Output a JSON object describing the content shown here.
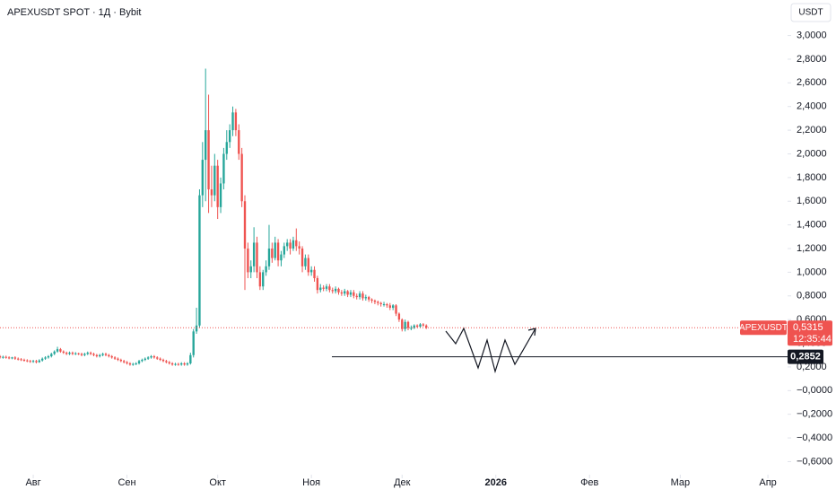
{
  "chart_data": {
    "type": "candlestick",
    "title": "APEXUSDT SPOT · 1Д · Bybit",
    "currency": "USDT",
    "symbol_label": "APEXUSDT",
    "countdown": "12:35:44",
    "up_color": "#26a69a",
    "down_color": "#ef5350",
    "last_price": {
      "value": 0.5315,
      "label": "0,5315"
    },
    "hline": {
      "value": 0.2852,
      "label": "0,2852"
    },
    "xlim": [
      0,
      260.5
    ],
    "xticks": [
      {
        "value": 11,
        "label": "Авг"
      },
      {
        "value": 42,
        "label": "Сен"
      },
      {
        "value": 72,
        "label": "Окт"
      },
      {
        "value": 103,
        "label": "Ноя"
      },
      {
        "value": 133,
        "label": "Дек"
      },
      {
        "value": 164,
        "label": "2026"
      },
      {
        "value": 195,
        "label": "Фев"
      },
      {
        "value": 225,
        "label": "Мар"
      },
      {
        "value": 254,
        "label": "Апр"
      }
    ],
    "ylim": [
      -0.68,
      3.3
    ],
    "yticks": [
      {
        "value": 3,
        "label": "3,0000"
      },
      {
        "value": 2.8,
        "label": "2,8000"
      },
      {
        "value": 2.6,
        "label": "2,6000"
      },
      {
        "value": 2.4,
        "label": "2,4000"
      },
      {
        "value": 2.2,
        "label": "2,2000"
      },
      {
        "value": 2,
        "label": "2,0000"
      },
      {
        "value": 1.8,
        "label": "1,8000"
      },
      {
        "value": 1.6,
        "label": "1,6000"
      },
      {
        "value": 1.4,
        "label": "1,4000"
      },
      {
        "value": 1.2,
        "label": "1,2000"
      },
      {
        "value": 1,
        "label": "1,0000"
      },
      {
        "value": 0.8,
        "label": "0,8000"
      },
      {
        "value": 0.6,
        "label": "0,6000"
      },
      {
        "value": 0.4,
        "label": "0,4000"
      },
      {
        "value": 0.2,
        "label": "0,2000"
      },
      {
        "value": 0,
        "label": "−0,0000"
      },
      {
        "value": -0.2,
        "label": "−0,2000"
      },
      {
        "value": -0.4,
        "label": "−0,4000"
      },
      {
        "value": -0.6,
        "label": "−0,6000"
      }
    ],
    "x": [
      0,
      1,
      2,
      3,
      4,
      5,
      6,
      7,
      8,
      9,
      10,
      11,
      12,
      13,
      14,
      15,
      16,
      17,
      18,
      19,
      20,
      21,
      22,
      23,
      24,
      25,
      26,
      27,
      28,
      29,
      30,
      31,
      32,
      33,
      34,
      35,
      36,
      37,
      38,
      39,
      40,
      41,
      42,
      43,
      44,
      45,
      46,
      47,
      48,
      49,
      50,
      51,
      52,
      53,
      54,
      55,
      56,
      57,
      58,
      59,
      60,
      61,
      62,
      63,
      64,
      65,
      66,
      67,
      68,
      69,
      70,
      71,
      72,
      73,
      74,
      75,
      76,
      77,
      78,
      79,
      80,
      81,
      82,
      83,
      84,
      85,
      86,
      87,
      88,
      89,
      90,
      91,
      92,
      93,
      94,
      95,
      96,
      97,
      98,
      99,
      100,
      101,
      102,
      103,
      104,
      105,
      106,
      107,
      108,
      109,
      110,
      111,
      112,
      113,
      114,
      115,
      116,
      117,
      118,
      119,
      120,
      121,
      122,
      123,
      124,
      125,
      126,
      127,
      128,
      129,
      130,
      131,
      132,
      133,
      134,
      135,
      136,
      137,
      138,
      139,
      140,
      141
    ],
    "open": [
      0.29,
      0.28,
      0.285,
      0.28,
      0.275,
      0.28,
      0.27,
      0.265,
      0.26,
      0.255,
      0.25,
      0.245,
      0.25,
      0.24,
      0.255,
      0.27,
      0.28,
      0.29,
      0.31,
      0.33,
      0.35,
      0.33,
      0.32,
      0.31,
      0.32,
      0.31,
      0.315,
      0.31,
      0.3,
      0.31,
      0.32,
      0.31,
      0.3,
      0.29,
      0.3,
      0.31,
      0.3,
      0.29,
      0.28,
      0.27,
      0.26,
      0.25,
      0.24,
      0.23,
      0.22,
      0.225,
      0.23,
      0.25,
      0.26,
      0.27,
      0.28,
      0.29,
      0.28,
      0.27,
      0.26,
      0.25,
      0.24,
      0.23,
      0.22,
      0.225,
      0.22,
      0.23,
      0.22,
      0.23,
      0.3,
      0.5,
      0.55,
      1.65,
      1.95,
      2.2,
      1.7,
      1.65,
      1.9,
      1.55,
      1.75,
      2.0,
      2.1,
      2.2,
      2.35,
      2.2,
      2.0,
      1.6,
      1.2,
      1.0,
      1.05,
      1.25,
      1.0,
      0.88,
      1.0,
      1.05,
      1.2,
      1.12,
      1.25,
      1.1,
      1.15,
      1.22,
      1.25,
      1.2,
      1.27,
      1.22,
      1.2,
      1.05,
      1.12,
      1.0,
      1.02,
      0.95,
      0.85,
      0.87,
      0.86,
      0.88,
      0.85,
      0.84,
      0.86,
      0.83,
      0.82,
      0.84,
      0.81,
      0.83,
      0.8,
      0.79,
      0.82,
      0.78,
      0.79,
      0.77,
      0.76,
      0.75,
      0.74,
      0.73,
      0.73,
      0.72,
      0.7,
      0.72,
      0.65,
      0.6,
      0.52,
      0.58,
      0.53,
      0.53,
      0.55,
      0.54,
      0.56,
      0.55
    ],
    "high": [
      0.3,
      0.295,
      0.295,
      0.29,
      0.285,
      0.29,
      0.28,
      0.275,
      0.27,
      0.265,
      0.26,
      0.26,
      0.26,
      0.265,
      0.28,
      0.29,
      0.3,
      0.32,
      0.34,
      0.37,
      0.36,
      0.34,
      0.33,
      0.33,
      0.33,
      0.325,
      0.32,
      0.32,
      0.32,
      0.33,
      0.33,
      0.32,
      0.31,
      0.31,
      0.32,
      0.32,
      0.31,
      0.3,
      0.29,
      0.28,
      0.27,
      0.26,
      0.25,
      0.24,
      0.235,
      0.24,
      0.26,
      0.27,
      0.28,
      0.29,
      0.3,
      0.3,
      0.29,
      0.28,
      0.27,
      0.26,
      0.25,
      0.24,
      0.235,
      0.235,
      0.24,
      0.24,
      0.24,
      0.32,
      0.52,
      0.7,
      1.7,
      2.1,
      2.72,
      2.5,
      1.9,
      2.0,
      1.95,
      1.8,
      2.05,
      2.2,
      2.25,
      2.4,
      2.38,
      2.25,
      2.05,
      1.65,
      1.25,
      1.1,
      1.38,
      1.3,
      1.05,
      1.02,
      1.1,
      1.4,
      1.25,
      1.3,
      1.28,
      1.18,
      1.25,
      1.28,
      1.28,
      1.3,
      1.37,
      1.26,
      1.22,
      1.15,
      1.15,
      1.05,
      1.05,
      0.97,
      0.9,
      0.89,
      0.9,
      0.9,
      0.87,
      0.88,
      0.87,
      0.85,
      0.86,
      0.85,
      0.85,
      0.85,
      0.82,
      0.84,
      0.84,
      0.81,
      0.8,
      0.78,
      0.77,
      0.76,
      0.75,
      0.75,
      0.74,
      0.74,
      0.73,
      0.73,
      0.66,
      0.61,
      0.6,
      0.59,
      0.55,
      0.56,
      0.56,
      0.57,
      0.57,
      0.56
    ],
    "low": [
      0.27,
      0.27,
      0.27,
      0.265,
      0.265,
      0.26,
      0.255,
      0.25,
      0.245,
      0.24,
      0.235,
      0.235,
      0.23,
      0.235,
      0.245,
      0.26,
      0.27,
      0.28,
      0.3,
      0.32,
      0.32,
      0.31,
      0.3,
      0.3,
      0.3,
      0.3,
      0.3,
      0.29,
      0.29,
      0.3,
      0.3,
      0.29,
      0.28,
      0.28,
      0.29,
      0.29,
      0.28,
      0.27,
      0.26,
      0.25,
      0.24,
      0.23,
      0.22,
      0.21,
      0.21,
      0.215,
      0.22,
      0.24,
      0.25,
      0.26,
      0.27,
      0.27,
      0.26,
      0.25,
      0.24,
      0.23,
      0.22,
      0.21,
      0.21,
      0.21,
      0.21,
      0.21,
      0.21,
      0.22,
      0.28,
      0.48,
      0.53,
      1.55,
      1.6,
      1.5,
      1.55,
      1.6,
      1.45,
      1.5,
      1.7,
      1.95,
      2.05,
      2.15,
      2.15,
      1.95,
      1.55,
      0.85,
      0.95,
      0.95,
      1.0,
      0.95,
      0.85,
      0.85,
      0.97,
      1.02,
      1.08,
      1.1,
      1.05,
      1.05,
      1.12,
      1.18,
      1.15,
      1.18,
      1.18,
      1.15,
      1.0,
      1.02,
      0.97,
      0.97,
      0.92,
      0.82,
      0.83,
      0.84,
      0.84,
      0.83,
      0.82,
      0.82,
      0.81,
      0.8,
      0.8,
      0.79,
      0.79,
      0.78,
      0.77,
      0.77,
      0.76,
      0.76,
      0.75,
      0.74,
      0.73,
      0.72,
      0.71,
      0.71,
      0.7,
      0.68,
      0.68,
      0.63,
      0.58,
      0.5,
      0.5,
      0.51,
      0.51,
      0.52,
      0.53,
      0.53,
      0.54,
      0.52
    ],
    "close": [
      0.28,
      0.285,
      0.28,
      0.275,
      0.28,
      0.27,
      0.265,
      0.26,
      0.255,
      0.25,
      0.245,
      0.25,
      0.24,
      0.255,
      0.27,
      0.28,
      0.29,
      0.31,
      0.33,
      0.35,
      0.33,
      0.32,
      0.31,
      0.32,
      0.31,
      0.315,
      0.31,
      0.3,
      0.31,
      0.32,
      0.31,
      0.3,
      0.29,
      0.3,
      0.31,
      0.3,
      0.29,
      0.28,
      0.27,
      0.26,
      0.25,
      0.24,
      0.23,
      0.22,
      0.225,
      0.23,
      0.25,
      0.26,
      0.27,
      0.28,
      0.29,
      0.28,
      0.27,
      0.26,
      0.25,
      0.24,
      0.23,
      0.22,
      0.225,
      0.22,
      0.23,
      0.22,
      0.23,
      0.3,
      0.5,
      0.55,
      1.65,
      1.95,
      2.2,
      1.7,
      1.65,
      1.9,
      1.55,
      1.75,
      2.0,
      2.1,
      2.2,
      2.35,
      2.2,
      2.0,
      1.6,
      1.2,
      1.0,
      1.05,
      1.25,
      1.0,
      0.88,
      1.0,
      1.05,
      1.2,
      1.12,
      1.25,
      1.1,
      1.15,
      1.22,
      1.25,
      1.2,
      1.27,
      1.22,
      1.2,
      1.05,
      1.12,
      1.0,
      1.02,
      0.95,
      0.85,
      0.87,
      0.86,
      0.88,
      0.85,
      0.84,
      0.86,
      0.83,
      0.82,
      0.84,
      0.81,
      0.83,
      0.8,
      0.79,
      0.82,
      0.78,
      0.79,
      0.77,
      0.76,
      0.75,
      0.74,
      0.73,
      0.73,
      0.72,
      0.7,
      0.72,
      0.65,
      0.6,
      0.52,
      0.58,
      0.53,
      0.53,
      0.55,
      0.54,
      0.56,
      0.55,
      0.5315
    ]
  }
}
